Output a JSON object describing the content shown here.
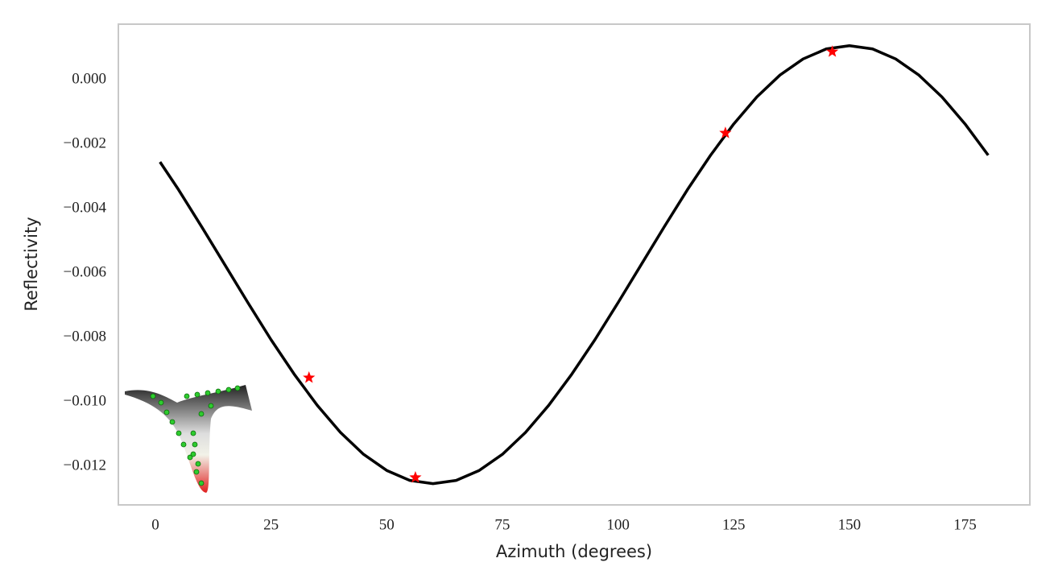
{
  "chart_data": {
    "type": "line",
    "x_label": "Azimuth (degrees)",
    "y_label": "Reflectivity",
    "xlim": [
      -8,
      189
    ],
    "ylim": [
      -0.0132,
      0.00173
    ],
    "xticks": [
      0,
      25,
      50,
      75,
      100,
      125,
      150,
      175
    ],
    "yticks": [
      {
        "value": 0,
        "label": "0.000"
      },
      {
        "value": -0.002,
        "label": "−0.002"
      },
      {
        "value": -0.004,
        "label": "−0.004"
      },
      {
        "value": -0.006,
        "label": "−0.006"
      },
      {
        "value": -0.008,
        "label": "−0.008"
      },
      {
        "value": -0.01,
        "label": "−0.010"
      },
      {
        "value": -0.012,
        "label": "−0.012"
      }
    ],
    "grid": false,
    "series": [
      {
        "color": "#000000",
        "x": [
          1,
          5,
          10,
          15,
          20,
          25,
          30,
          35,
          40,
          45,
          50,
          55,
          60,
          65,
          70,
          75,
          80,
          85,
          90,
          95,
          100,
          105,
          110,
          115,
          120,
          125,
          130,
          135,
          140,
          145,
          150,
          155,
          160,
          165,
          170,
          175,
          180
        ],
        "values": [
          -0.00255,
          -0.00341,
          -0.00456,
          -0.00574,
          -0.00692,
          -0.00807,
          -0.00914,
          -0.01011,
          -0.01095,
          -0.01163,
          -0.01213,
          -0.01244,
          -0.01254,
          -0.01244,
          -0.01213,
          -0.01163,
          -0.01095,
          -0.01011,
          -0.00914,
          -0.00807,
          -0.00692,
          -0.00574,
          -0.00456,
          -0.00341,
          -0.00234,
          -0.00137,
          -0.00053,
          0.00015,
          0.00065,
          0.00096,
          0.00106,
          0.00096,
          0.00065,
          0.00015,
          -0.00053,
          -0.00137,
          -0.00234
        ]
      },
      {
        "type": "scatter",
        "marker": "star",
        "color": "#ff0000",
        "x": [
          33.2,
          56.2,
          123.2,
          146.3
        ],
        "values": [
          -0.00925,
          -0.01235,
          -0.00165,
          0.000875
        ]
      }
    ]
  }
}
